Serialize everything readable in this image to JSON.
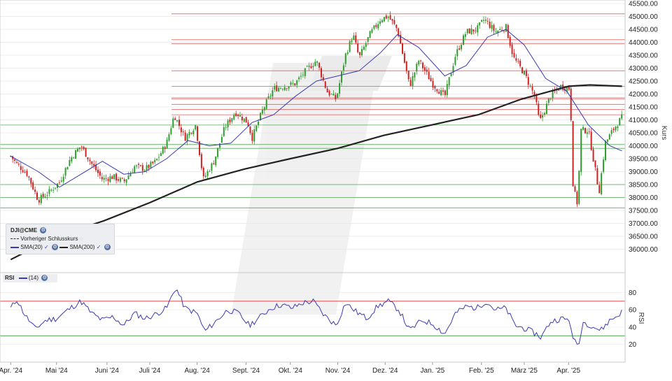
{
  "chart_data": [
    {
      "type": "candlestick",
      "instrument": "DJI@CME",
      "ylabel": "Kurs",
      "ylim": [
        35500,
        45500
      ],
      "y_ticks": [
        "36000.00",
        "36500.00",
        "37000.00",
        "37500.00",
        "38000.00",
        "38500.00",
        "39000.00",
        "39500.00",
        "40000.00",
        "40500.00",
        "41000.00",
        "41500.00",
        "42000.00",
        "42500.00",
        "43000.00",
        "43500.00",
        "44000.00",
        "44500.00",
        "45000.00",
        "45500.00"
      ],
      "x_labels": [
        "Apr. '24",
        "Mai '24",
        "Juni '24",
        "Juli '24",
        "Aug. '24",
        "Sept. '24",
        "Okt. '24",
        "Nov. '24",
        "Dez. '24",
        "Jan. '25",
        "Feb. '25",
        "März '25",
        "Apr. '25"
      ],
      "close_path": [
        [
          "2024-04-01",
          39600
        ],
        [
          "2024-04-05",
          39300
        ],
        [
          "2024-04-12",
          38900
        ],
        [
          "2024-04-19",
          37900
        ],
        [
          "2024-04-26",
          38200
        ],
        [
          "2024-05-03",
          38600
        ],
        [
          "2024-05-10",
          39500
        ],
        [
          "2024-05-17",
          40000
        ],
        [
          "2024-05-24",
          39300
        ],
        [
          "2024-05-31",
          38700
        ],
        [
          "2024-06-07",
          38800
        ],
        [
          "2024-06-14",
          38600
        ],
        [
          "2024-06-21",
          39200
        ],
        [
          "2024-06-28",
          39100
        ],
        [
          "2024-07-05",
          39400
        ],
        [
          "2024-07-12",
          40100
        ],
        [
          "2024-07-17",
          41200
        ],
        [
          "2024-07-24",
          40300
        ],
        [
          "2024-07-31",
          40800
        ],
        [
          "2024-08-05",
          38700
        ],
        [
          "2024-08-12",
          39400
        ],
        [
          "2024-08-19",
          40700
        ],
        [
          "2024-08-26",
          41300
        ],
        [
          "2024-09-03",
          40900
        ],
        [
          "2024-09-06",
          40300
        ],
        [
          "2024-09-13",
          41400
        ],
        [
          "2024-09-20",
          42200
        ],
        [
          "2024-09-27",
          42300
        ],
        [
          "2024-10-04",
          42400
        ],
        [
          "2024-10-11",
          42900
        ],
        [
          "2024-10-18",
          43300
        ],
        [
          "2024-10-25",
          42100
        ],
        [
          "2024-10-31",
          41800
        ],
        [
          "2024-11-06",
          43500
        ],
        [
          "2024-11-11",
          44300
        ],
        [
          "2024-11-15",
          43400
        ],
        [
          "2024-11-22",
          44300
        ],
        [
          "2024-11-29",
          44900
        ],
        [
          "2024-12-04",
          45000
        ],
        [
          "2024-12-10",
          44500
        ],
        [
          "2024-12-18",
          42300
        ],
        [
          "2024-12-24",
          43300
        ],
        [
          "2025-01-02",
          42400
        ],
        [
          "2025-01-10",
          41900
        ],
        [
          "2025-01-17",
          43500
        ],
        [
          "2025-01-24",
          44400
        ],
        [
          "2025-01-31",
          44500
        ],
        [
          "2025-02-05",
          44900
        ],
        [
          "2025-02-12",
          44400
        ],
        [
          "2025-02-19",
          44600
        ],
        [
          "2025-02-24",
          43400
        ],
        [
          "2025-03-03",
          42800
        ],
        [
          "2025-03-10",
          41900
        ],
        [
          "2025-03-13",
          40900
        ],
        [
          "2025-03-20",
          41900
        ],
        [
          "2025-03-27",
          42300
        ],
        [
          "2025-04-02",
          42200
        ],
        [
          "2025-04-04",
          38400
        ],
        [
          "2025-04-07",
          37700
        ],
        [
          "2025-04-09",
          40600
        ],
        [
          "2025-04-14",
          40600
        ],
        [
          "2025-04-21",
          38200
        ],
        [
          "2025-04-25",
          40100
        ],
        [
          "2025-05-01",
          40700
        ],
        [
          "2025-05-06",
          41100
        ]
      ],
      "sma20_path": [
        [
          "2024-04-01",
          39600
        ],
        [
          "2024-04-19",
          39000
        ],
        [
          "2024-05-03",
          38400
        ],
        [
          "2024-05-17",
          38900
        ],
        [
          "2024-05-31",
          39400
        ],
        [
          "2024-06-14",
          38900
        ],
        [
          "2024-06-28",
          39000
        ],
        [
          "2024-07-12",
          39500
        ],
        [
          "2024-07-26",
          40200
        ],
        [
          "2024-08-09",
          40000
        ],
        [
          "2024-08-23",
          40100
        ],
        [
          "2024-09-06",
          40900
        ],
        [
          "2024-09-20",
          41200
        ],
        [
          "2024-10-04",
          41900
        ],
        [
          "2024-10-18",
          42500
        ],
        [
          "2024-11-01",
          42700
        ],
        [
          "2024-11-15",
          42900
        ],
        [
          "2024-11-29",
          43600
        ],
        [
          "2024-12-10",
          44300
        ],
        [
          "2024-12-24",
          43800
        ],
        [
          "2025-01-10",
          42700
        ],
        [
          "2025-01-24",
          43100
        ],
        [
          "2025-02-07",
          44200
        ],
        [
          "2025-02-19",
          44500
        ],
        [
          "2025-03-03",
          43900
        ],
        [
          "2025-03-17",
          42600
        ],
        [
          "2025-03-31",
          42100
        ],
        [
          "2025-04-14",
          40800
        ],
        [
          "2025-04-28",
          40000
        ],
        [
          "2025-05-06",
          39800
        ]
      ],
      "sma200_path": [
        [
          "2024-04-01",
          35600
        ],
        [
          "2024-05-01",
          36500
        ],
        [
          "2024-06-01",
          37100
        ],
        [
          "2024-07-01",
          37800
        ],
        [
          "2024-08-01",
          38600
        ],
        [
          "2024-09-01",
          39100
        ],
        [
          "2024-10-01",
          39500
        ],
        [
          "2024-11-01",
          39900
        ],
        [
          "2024-12-01",
          40400
        ],
        [
          "2025-01-01",
          40800
        ],
        [
          "2025-02-01",
          41200
        ],
        [
          "2025-03-01",
          41800
        ],
        [
          "2025-04-01",
          42300
        ],
        [
          "2025-04-15",
          42350
        ],
        [
          "2025-05-06",
          42300
        ]
      ],
      "resistance_lines": [
        45100,
        44100,
        43950,
        42900,
        42300,
        41850,
        41800,
        41600,
        41400,
        41200
      ],
      "support_lines": [
        40800,
        40050,
        39900,
        38500,
        38000,
        37600
      ],
      "legend": {
        "title": "DJI@CME",
        "prev_close": "Vorheriger Schlusskurs",
        "sma20": "SMA(20)",
        "sma200": "SMA(200)"
      },
      "colors": {
        "up": "#2e9d2e",
        "down": "#cc2222",
        "sma20": "#3a3ab0",
        "sma200": "#222222",
        "resistance": "#d44",
        "support": "#3a9a3a"
      }
    },
    {
      "type": "line",
      "name": "RSI",
      "legend_period": "(14)",
      "ylabel": "RSI",
      "ylim": [
        10,
        95
      ],
      "y_ticks": [
        "20",
        "40",
        "60",
        "80"
      ],
      "upper_band": 70,
      "lower_band": 30,
      "series": [
        [
          "2024-04-01",
          62
        ],
        [
          "2024-04-05",
          72
        ],
        [
          "2024-04-10",
          55
        ],
        [
          "2024-04-17",
          38
        ],
        [
          "2024-04-24",
          48
        ],
        [
          "2024-05-01",
          50
        ],
        [
          "2024-05-10",
          62
        ],
        [
          "2024-05-17",
          70
        ],
        [
          "2024-05-24",
          56
        ],
        [
          "2024-05-31",
          48
        ],
        [
          "2024-06-07",
          52
        ],
        [
          "2024-06-14",
          42
        ],
        [
          "2024-06-21",
          56
        ],
        [
          "2024-06-28",
          50
        ],
        [
          "2024-07-05",
          55
        ],
        [
          "2024-07-12",
          62
        ],
        [
          "2024-07-18",
          86
        ],
        [
          "2024-07-24",
          62
        ],
        [
          "2024-08-01",
          56
        ],
        [
          "2024-08-06",
          35
        ],
        [
          "2024-08-14",
          48
        ],
        [
          "2024-08-21",
          60
        ],
        [
          "2024-08-28",
          56
        ],
        [
          "2024-09-04",
          42
        ],
        [
          "2024-09-10",
          50
        ],
        [
          "2024-09-18",
          62
        ],
        [
          "2024-09-25",
          66
        ],
        [
          "2024-10-02",
          62
        ],
        [
          "2024-10-09",
          68
        ],
        [
          "2024-10-16",
          70
        ],
        [
          "2024-10-23",
          54
        ],
        [
          "2024-10-31",
          42
        ],
        [
          "2024-11-06",
          68
        ],
        [
          "2024-11-13",
          58
        ],
        [
          "2024-11-20",
          50
        ],
        [
          "2024-11-27",
          64
        ],
        [
          "2024-12-04",
          70
        ],
        [
          "2024-12-11",
          60
        ],
        [
          "2024-12-18",
          36
        ],
        [
          "2024-12-26",
          48
        ],
        [
          "2025-01-02",
          44
        ],
        [
          "2025-01-10",
          32
        ],
        [
          "2025-01-17",
          56
        ],
        [
          "2025-01-24",
          64
        ],
        [
          "2025-01-31",
          62
        ],
        [
          "2025-02-06",
          70
        ],
        [
          "2025-02-12",
          60
        ],
        [
          "2025-02-19",
          62
        ],
        [
          "2025-02-25",
          42
        ],
        [
          "2025-03-04",
          38
        ],
        [
          "2025-03-11",
          32
        ],
        [
          "2025-03-14",
          28
        ],
        [
          "2025-03-20",
          46
        ],
        [
          "2025-03-27",
          50
        ],
        [
          "2025-04-02",
          48
        ],
        [
          "2025-04-04",
          24
        ],
        [
          "2025-04-08",
          20
        ],
        [
          "2025-04-10",
          46
        ],
        [
          "2025-04-16",
          42
        ],
        [
          "2025-04-22",
          36
        ],
        [
          "2025-04-28",
          48
        ],
        [
          "2025-05-02",
          52
        ],
        [
          "2025-05-06",
          58
        ]
      ]
    }
  ]
}
